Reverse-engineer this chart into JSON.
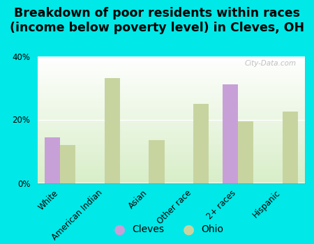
{
  "title": "Breakdown of poor residents within races\n(income below poverty level) in Cleves, OH",
  "categories": [
    "White",
    "American Indian",
    "Asian",
    "Other race",
    "2+ races",
    "Hispanic"
  ],
  "cleves_values": [
    14.5,
    0,
    0,
    0,
    31.0,
    0
  ],
  "ohio_values": [
    12.0,
    33.0,
    13.5,
    25.0,
    19.5,
    22.5
  ],
  "cleves_color": "#c8a0d8",
  "ohio_color": "#c8d4a0",
  "background_color": "#00e8e8",
  "ylim": [
    0,
    40
  ],
  "yticks": [
    0,
    20,
    40
  ],
  "ytick_labels": [
    "0%",
    "20%",
    "40%"
  ],
  "bar_width": 0.35,
  "title_fontsize": 12.5,
  "tick_fontsize": 8.5,
  "legend_fontsize": 10,
  "watermark": "City-Data.com"
}
